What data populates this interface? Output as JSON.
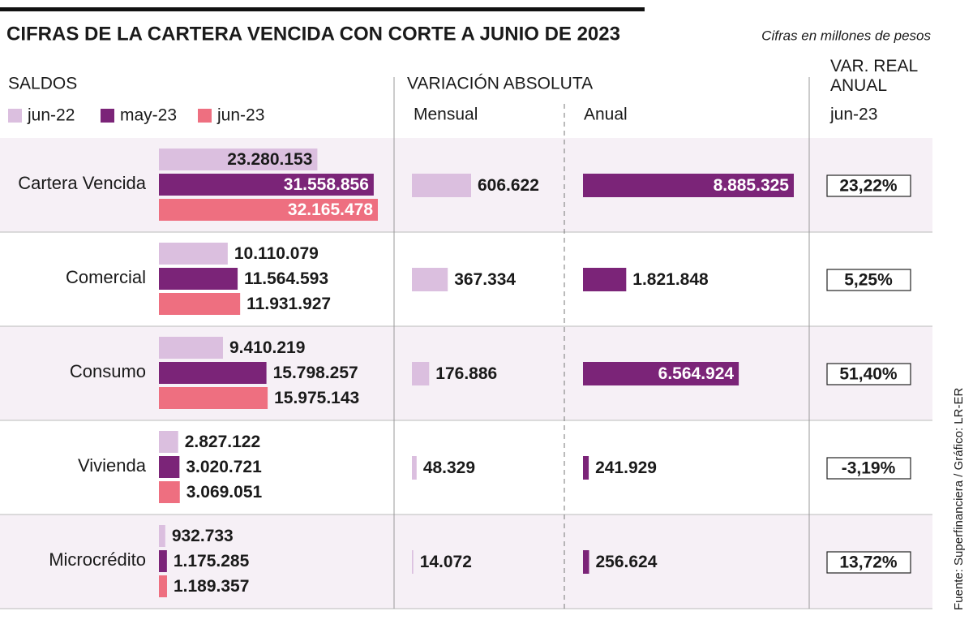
{
  "chart_data": {
    "type": "bar",
    "title": "CIFRAS DE LA CARTERA VENCIDA CON CORTE A JUNIO DE 2023",
    "subtitle": "Cifras en millones de pesos",
    "source": "Fuente: Superfinanciera / Gráfico: LR-ER",
    "categories": [
      "Cartera Vencida",
      "Comercial",
      "Consumo",
      "Vivienda",
      "Microcrédito"
    ],
    "saldos": {
      "title": "SALDOS",
      "series": [
        {
          "name": "jun-22",
          "color": "#dbbfdf",
          "values": [
            23280153,
            10110079,
            9410219,
            2827122,
            932733
          ],
          "value_labels": [
            "23.280.153",
            "10.110.079",
            "9.410.219",
            "2.827.122",
            "932.733"
          ]
        },
        {
          "name": "may-23",
          "color": "#7b2478",
          "values": [
            31558856,
            11564593,
            15798257,
            3020721,
            1175285
          ],
          "value_labels": [
            "31.558.856",
            "11.564.593",
            "15.798.257",
            "3.020.721",
            "1.175.285"
          ]
        },
        {
          "name": "jun-23",
          "color": "#ee6f80",
          "values": [
            32165478,
            11931927,
            15975143,
            3069051,
            1189357
          ],
          "value_labels": [
            "32.165.478",
            "11.931.927",
            "15.975.143",
            "3.069.051",
            "1.189.357"
          ]
        }
      ]
    },
    "variacion": {
      "title": "VARIACIÓN ABSOLUTA",
      "mensual": {
        "name": "Mensual",
        "color": "#dbbfdf",
        "values": [
          606622,
          367334,
          176886,
          48329,
          14072
        ],
        "value_labels": [
          "606.622",
          "367.334",
          "176.886",
          "48.329",
          "14.072"
        ]
      },
      "anual": {
        "name": "Anual",
        "color": "#7b2478",
        "values": [
          8885325,
          1821848,
          6564924,
          241929,
          256624
        ],
        "value_labels": [
          "8.885.325",
          "1.821.848",
          "6.564.924",
          "241.929",
          "256.624"
        ]
      }
    },
    "var_real": {
      "title": "VAR. REAL ANUAL",
      "period": "jun-23",
      "values": [
        23.22,
        5.25,
        51.4,
        -3.19,
        13.72
      ],
      "value_labels": [
        "23,22%",
        "5,25%",
        "51,40%",
        "-3,19%",
        "13,72%"
      ]
    }
  }
}
